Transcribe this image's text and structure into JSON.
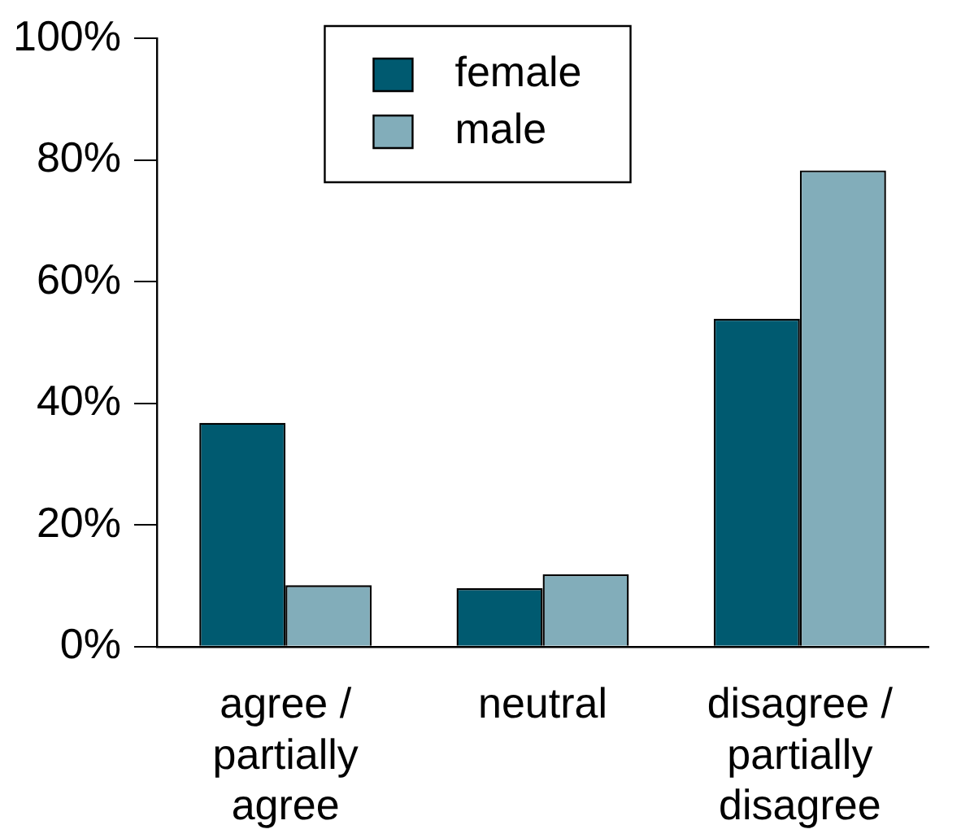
{
  "chart_data": {
    "type": "bar",
    "categories": [
      "agree / partially agree",
      "neutral",
      "disagree / partially disagree"
    ],
    "series": [
      {
        "name": "female",
        "color": "#005a70",
        "values": [
          36.8,
          9.6,
          53.9
        ]
      },
      {
        "name": "male",
        "color": "#82adba",
        "values": [
          10.1,
          11.9,
          78.3
        ]
      }
    ],
    "ylim": [
      0,
      100
    ],
    "yticks": [
      {
        "value": 0,
        "label": "0%"
      },
      {
        "value": 20,
        "label": "20%"
      },
      {
        "value": 40,
        "label": "40%"
      },
      {
        "value": 60,
        "label": "60%"
      },
      {
        "value": 80,
        "label": "80%"
      },
      {
        "value": 100,
        "label": "100%"
      }
    ],
    "grid": false,
    "legend": "top"
  }
}
